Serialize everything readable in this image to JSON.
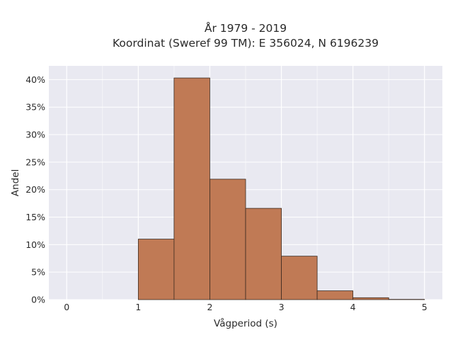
{
  "chart_data": {
    "type": "bar",
    "title": "År 1979 - 2019",
    "subtitle": "Koordinat (Sweref 99 TM): E 356024, N 6196239",
    "xlabel": "Vågperiod (s)",
    "ylabel": "Andel",
    "bin_width": 0.5,
    "bins": [
      {
        "start": 1.0,
        "end": 1.5,
        "value": 11.0
      },
      {
        "start": 1.5,
        "end": 2.0,
        "value": 40.3
      },
      {
        "start": 2.0,
        "end": 2.5,
        "value": 21.9
      },
      {
        "start": 2.5,
        "end": 3.0,
        "value": 16.6
      },
      {
        "start": 3.0,
        "end": 3.5,
        "value": 7.9
      },
      {
        "start": 3.5,
        "end": 4.0,
        "value": 1.6
      },
      {
        "start": 4.0,
        "end": 4.5,
        "value": 0.35
      },
      {
        "start": 4.5,
        "end": 5.0,
        "value": 0.05
      }
    ],
    "xlim": [
      -0.25,
      5.25
    ],
    "ylim": [
      0,
      42.5
    ],
    "xticks": [
      0,
      1,
      2,
      3,
      4,
      5
    ],
    "yticks": [
      0,
      5,
      10,
      15,
      20,
      25,
      30,
      35,
      40
    ],
    "ytick_labels": [
      "0%",
      "5%",
      "10%",
      "15%",
      "20%",
      "25%",
      "30%",
      "35%",
      "40%"
    ],
    "bar_color": "#c07a55",
    "bar_edge_color": "#3a2a20",
    "plot_bg_color": "#e9e9f1",
    "grid": true
  }
}
